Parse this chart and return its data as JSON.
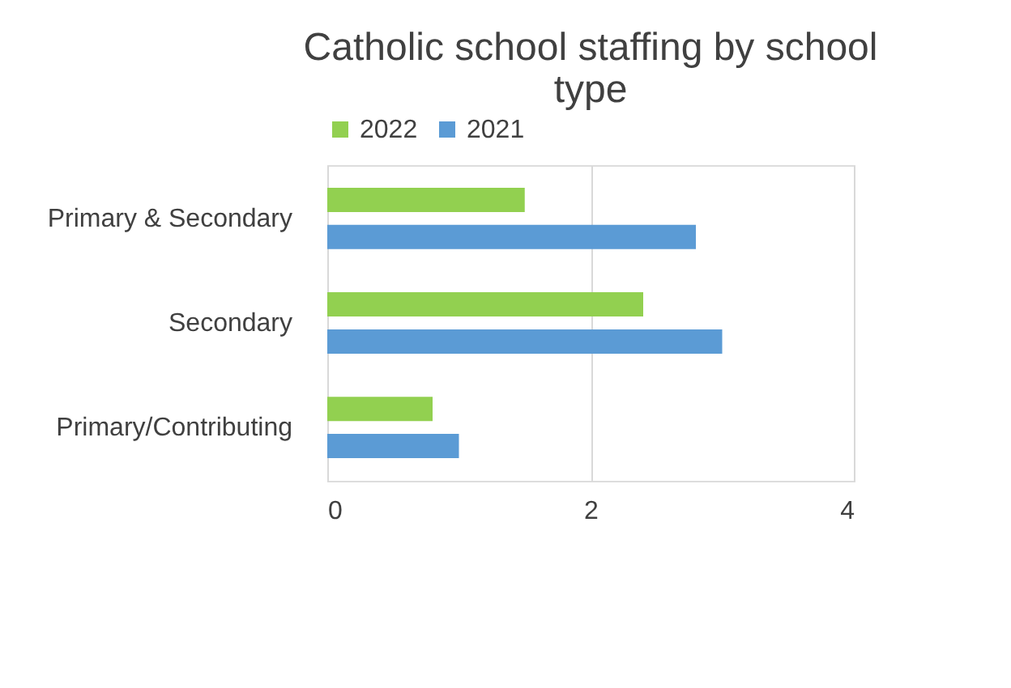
{
  "chart_data": {
    "type": "bar",
    "orientation": "horizontal",
    "title": "Catholic school staffing by school type",
    "categories": [
      "Primary & Secondary",
      "Secondary",
      "Primary/Contributing"
    ],
    "series": [
      {
        "name": "2022",
        "color": "#92d050",
        "values": [
          1.5,
          2.4,
          0.8
        ]
      },
      {
        "name": "2021",
        "color": "#5b9bd5",
        "values": [
          2.8,
          3.0,
          1.0
        ]
      }
    ],
    "xlim": [
      0,
      4
    ],
    "xticks": [
      0,
      2,
      4
    ],
    "grid": "x",
    "legend": "top"
  }
}
